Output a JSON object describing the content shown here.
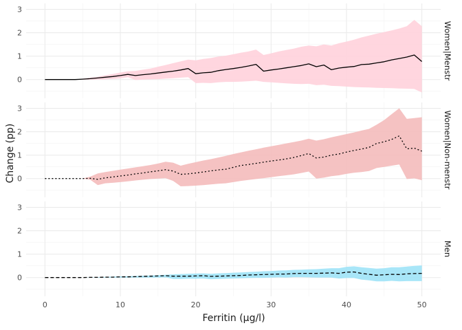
{
  "chart_data": {
    "type": "line",
    "xlabel": "Ferritin (µg/l)",
    "ylabel": "Change (pp)",
    "xlim": [
      -2.5,
      52.5
    ],
    "ylim": [
      -0.8,
      3.25
    ],
    "x_ticks": [
      0,
      10,
      20,
      30,
      40,
      50
    ],
    "y_ticks": [
      0,
      1,
      2,
      3
    ],
    "grid": true,
    "shared_x": true,
    "panels": [
      {
        "strip_label": "Women|Menstr",
        "line_style": "solid",
        "band_color": "#FFD1DC",
        "line_color": "#000000",
        "series": [
          {
            "x": [
              0,
              1,
              2,
              3,
              4,
              5,
              6,
              7,
              8,
              9,
              10,
              11,
              12,
              13,
              14,
              15,
              16,
              17,
              18,
              19,
              20,
              21,
              22,
              23,
              24,
              25,
              26,
              27,
              28,
              29,
              30,
              31,
              32,
              33,
              34,
              35,
              36,
              37,
              38,
              39,
              40,
              41,
              42,
              43,
              44,
              45,
              46,
              47,
              48,
              49,
              50
            ],
            "y": [
              0,
              0,
              0,
              0,
              0,
              0.02,
              0.04,
              0.07,
              0.1,
              0.13,
              0.17,
              0.22,
              0.17,
              0.21,
              0.24,
              0.28,
              0.32,
              0.36,
              0.41,
              0.47,
              0.25,
              0.29,
              0.31,
              0.38,
              0.43,
              0.47,
              0.52,
              0.58,
              0.65,
              0.36,
              0.41,
              0.45,
              0.5,
              0.55,
              0.6,
              0.67,
              0.55,
              0.62,
              0.42,
              0.49,
              0.53,
              0.56,
              0.64,
              0.66,
              0.71,
              0.76,
              0.84,
              0.9,
              0.96,
              1.05,
              0.77
            ],
            "lower": [
              0,
              0,
              0,
              0,
              0,
              0,
              0,
              0,
              0.01,
              0.03,
              0.05,
              0.1,
              -0.02,
              0.0,
              0.01,
              0.02,
              0.04,
              0.06,
              0.08,
              0.1,
              -0.15,
              -0.14,
              -0.15,
              -0.12,
              -0.1,
              -0.1,
              -0.09,
              -0.07,
              -0.05,
              -0.1,
              -0.12,
              -0.14,
              -0.16,
              -0.18,
              -0.19,
              -0.18,
              -0.24,
              -0.22,
              -0.27,
              -0.28,
              -0.3,
              -0.32,
              -0.33,
              -0.34,
              -0.35,
              -0.36,
              -0.37,
              -0.38,
              -0.39,
              -0.4,
              -0.55
            ],
            "upper": [
              0,
              0,
              0,
              0,
              0,
              0.04,
              0.08,
              0.12,
              0.18,
              0.24,
              0.3,
              0.35,
              0.37,
              0.42,
              0.47,
              0.55,
              0.62,
              0.7,
              0.78,
              0.85,
              0.82,
              0.88,
              0.92,
              0.98,
              1.02,
              1.08,
              1.15,
              1.2,
              1.28,
              1.05,
              1.12,
              1.2,
              1.26,
              1.32,
              1.4,
              1.45,
              1.42,
              1.5,
              1.45,
              1.55,
              1.62,
              1.7,
              1.8,
              1.88,
              1.96,
              2.03,
              2.1,
              2.18,
              2.28,
              2.55,
              2.28
            ]
          }
        ]
      },
      {
        "strip_label": "Women|Non-menstr",
        "line_style": "dotted",
        "band_color": "#F4BBBB",
        "line_color": "#000000",
        "series": [
          {
            "x": [
              0,
              1,
              2,
              3,
              4,
              5,
              6,
              7,
              8,
              9,
              10,
              11,
              12,
              13,
              14,
              15,
              16,
              17,
              18,
              19,
              20,
              21,
              22,
              23,
              24,
              25,
              26,
              27,
              28,
              29,
              30,
              31,
              32,
              33,
              34,
              35,
              36,
              37,
              38,
              39,
              40,
              41,
              42,
              43,
              44,
              45,
              46,
              47,
              48,
              49,
              50
            ],
            "y": [
              0,
              0,
              0,
              0,
              0,
              0,
              0.01,
              -0.03,
              0.03,
              0.07,
              0.11,
              0.15,
              0.2,
              0.24,
              0.29,
              0.33,
              0.38,
              0.32,
              0.18,
              0.2,
              0.24,
              0.28,
              0.33,
              0.37,
              0.4,
              0.48,
              0.56,
              0.6,
              0.65,
              0.7,
              0.75,
              0.79,
              0.84,
              0.9,
              0.98,
              1.07,
              0.88,
              0.92,
              1.0,
              1.05,
              1.13,
              1.2,
              1.26,
              1.33,
              1.5,
              1.57,
              1.67,
              1.82,
              1.27,
              1.3,
              1.17
            ],
            "lower": [
              0,
              0,
              0,
              0,
              0,
              0,
              -0.05,
              -0.28,
              -0.2,
              -0.18,
              -0.15,
              -0.12,
              -0.08,
              -0.05,
              -0.02,
              0.0,
              0.02,
              -0.1,
              -0.33,
              -0.32,
              -0.3,
              -0.28,
              -0.25,
              -0.22,
              -0.2,
              -0.15,
              -0.1,
              -0.06,
              -0.02,
              0.02,
              0.06,
              0.1,
              0.14,
              0.18,
              0.24,
              0.3,
              0.0,
              0.04,
              0.1,
              0.14,
              0.2,
              0.25,
              0.28,
              0.32,
              0.45,
              0.5,
              0.55,
              0.6,
              -0.02,
              0.01,
              -0.07
            ],
            "upper": [
              0,
              0,
              0,
              0,
              0,
              0,
              0.08,
              0.22,
              0.28,
              0.33,
              0.38,
              0.43,
              0.48,
              0.53,
              0.58,
              0.64,
              0.72,
              0.68,
              0.55,
              0.63,
              0.7,
              0.77,
              0.83,
              0.9,
              0.97,
              1.05,
              1.12,
              1.19,
              1.25,
              1.32,
              1.38,
              1.44,
              1.5,
              1.56,
              1.62,
              1.7,
              1.62,
              1.68,
              1.76,
              1.83,
              1.9,
              1.97,
              2.05,
              2.12,
              2.3,
              2.5,
              2.75,
              3.0,
              2.55,
              2.58,
              2.62
            ]
          }
        ]
      },
      {
        "strip_label": "Men",
        "line_style": "dashed",
        "band_color": "#9FE3F7",
        "line_color": "#000000",
        "series": [
          {
            "x": [
              0,
              1,
              2,
              3,
              4,
              5,
              6,
              7,
              8,
              9,
              10,
              11,
              12,
              13,
              14,
              15,
              16,
              17,
              18,
              19,
              20,
              21,
              22,
              23,
              24,
              25,
              26,
              27,
              28,
              29,
              30,
              31,
              32,
              33,
              34,
              35,
              36,
              37,
              38,
              39,
              40,
              41,
              42,
              43,
              44,
              45,
              46,
              47,
              48,
              49,
              50
            ],
            "y": [
              0,
              0,
              0,
              0,
              0,
              0,
              0.01,
              0.01,
              0.02,
              0.02,
              0.03,
              0.03,
              0.04,
              0.05,
              0.06,
              0.07,
              0.08,
              0.06,
              0.06,
              0.06,
              0.07,
              0.08,
              0.05,
              0.06,
              0.07,
              0.08,
              0.09,
              0.11,
              0.12,
              0.13,
              0.14,
              0.15,
              0.15,
              0.17,
              0.18,
              0.18,
              0.18,
              0.19,
              0.2,
              0.18,
              0.23,
              0.24,
              0.18,
              0.14,
              0.1,
              0.12,
              0.14,
              0.13,
              0.16,
              0.17,
              0.18
            ],
            "lower": [
              0,
              0,
              0,
              0,
              0,
              0,
              0,
              0,
              0,
              0,
              0,
              0,
              0,
              0,
              0,
              0,
              0.01,
              -0.06,
              -0.06,
              -0.05,
              -0.05,
              -0.04,
              -0.07,
              -0.06,
              -0.05,
              -0.04,
              -0.03,
              -0.02,
              -0.01,
              -0.01,
              0.0,
              0.01,
              0.0,
              0.02,
              0.02,
              0.01,
              0.0,
              0.0,
              0.0,
              -0.04,
              -0.02,
              -0.02,
              -0.09,
              -0.12,
              -0.16,
              -0.16,
              -0.14,
              -0.16,
              -0.15,
              -0.15,
              -0.15
            ],
            "upper": [
              0,
              0,
              0,
              0,
              0,
              0,
              0.01,
              0.02,
              0.03,
              0.04,
              0.05,
              0.06,
              0.07,
              0.08,
              0.09,
              0.1,
              0.12,
              0.14,
              0.15,
              0.16,
              0.17,
              0.18,
              0.16,
              0.18,
              0.19,
              0.21,
              0.22,
              0.24,
              0.25,
              0.27,
              0.28,
              0.3,
              0.31,
              0.33,
              0.34,
              0.35,
              0.36,
              0.38,
              0.4,
              0.4,
              0.46,
              0.48,
              0.44,
              0.41,
              0.38,
              0.4,
              0.44,
              0.44,
              0.47,
              0.5,
              0.52
            ]
          }
        ]
      }
    ]
  }
}
